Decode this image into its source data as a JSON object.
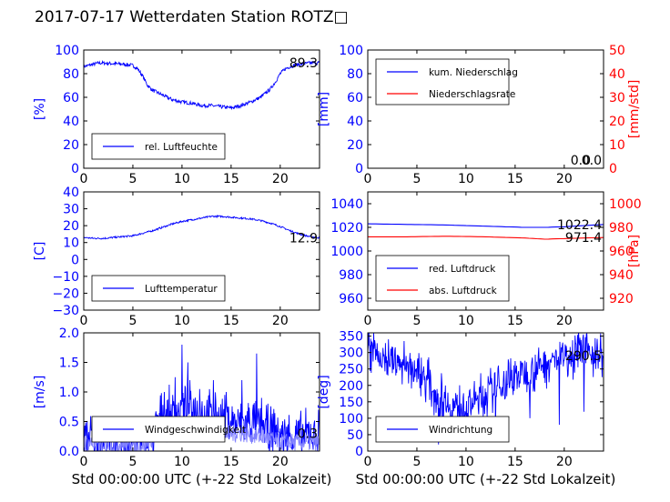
{
  "title": "2017-07-17 Wetterdaten Station ROTZ□",
  "xlabel": "Std 00:00:00 UTC (+-22 Std Lokalzeit)",
  "colors": {
    "blue": "#0000ff",
    "red": "#ff0000",
    "light_blue": "#8080ff"
  },
  "chart_data": [
    {
      "type": "line",
      "xlim": [
        0,
        24
      ],
      "xticks": [
        "0",
        "5",
        "10",
        "15",
        "20"
      ],
      "ylabel": "[%]",
      "ylim": [
        0,
        100
      ],
      "yticks": [
        "0",
        "20",
        "40",
        "60",
        "80",
        "100"
      ],
      "annotation": "89.3",
      "legend": [
        "rel. Luftfeuchte"
      ],
      "series": [
        {
          "name": "rel. Luftfeuchte",
          "color": "blue",
          "noise": 1.5,
          "x": [
            0,
            0.5,
            1,
            1.5,
            2,
            3,
            4,
            5,
            5.5,
            6,
            6.5,
            7,
            7.5,
            8,
            9,
            10,
            11,
            12,
            13,
            14,
            15,
            16,
            17,
            18,
            19,
            19.5,
            20,
            20.5,
            21,
            22,
            23,
            24
          ],
          "y": [
            86,
            87,
            88,
            89,
            89,
            88.5,
            88,
            87,
            84,
            78,
            70,
            66,
            64,
            62,
            58,
            56,
            55,
            53,
            53,
            52,
            51,
            53,
            56,
            60,
            67,
            73,
            80,
            84,
            86,
            88,
            89,
            89.3
          ]
        }
      ]
    },
    {
      "type": "line",
      "xlim": [
        0,
        24
      ],
      "xticks": [
        "0",
        "5",
        "10",
        "15",
        "20"
      ],
      "ylabel": "[mm]",
      "ylim": [
        0,
        100
      ],
      "yticks": [
        "0",
        "20",
        "40",
        "60",
        "80",
        "100"
      ],
      "ylabel2": "[mm/std]",
      "ylim2": [
        0,
        50
      ],
      "yticks2": [
        "0",
        "10",
        "20",
        "30",
        "40",
        "50"
      ],
      "annotation": "0.0",
      "annotation2": "0.0",
      "legend": [
        "kum. Niederschlag",
        "Niederschlagsrate"
      ],
      "series": [
        {
          "name": "kum. Niederschlag",
          "color": "blue",
          "axis": 1,
          "x": [
            0,
            24
          ],
          "y": [
            0,
            0
          ]
        },
        {
          "name": "Niederschlagsrate",
          "color": "red",
          "axis": 2,
          "x": [
            0,
            24
          ],
          "y": [
            0,
            0
          ]
        }
      ]
    },
    {
      "type": "line",
      "xlim": [
        0,
        24
      ],
      "xticks": [
        "0",
        "5",
        "10",
        "15",
        "20"
      ],
      "ylabel": "[C]",
      "ylim": [
        -30,
        40
      ],
      "yticks": [
        "−30",
        "−20",
        "−10",
        "0",
        "10",
        "20",
        "30",
        "40"
      ],
      "annotation": "12.9",
      "legend": [
        "Lufttemperatur"
      ],
      "series": [
        {
          "name": "Lufttemperatur",
          "color": "blue",
          "noise": 0.5,
          "x": [
            0,
            1,
            2,
            3,
            4,
            5,
            6,
            7,
            8,
            9,
            10,
            11,
            12,
            13,
            14,
            15,
            16,
            17,
            18,
            19,
            20,
            21,
            22,
            23,
            24
          ],
          "y": [
            13,
            12.5,
            12.5,
            13,
            13.5,
            14,
            15.5,
            17,
            19,
            21,
            22.5,
            23.5,
            24.5,
            25.5,
            25.5,
            25,
            24.5,
            24,
            23,
            21.5,
            19.5,
            17,
            15,
            13.5,
            12.9
          ]
        }
      ]
    },
    {
      "type": "line",
      "xlim": [
        0,
        24
      ],
      "xticks": [
        "0",
        "5",
        "10",
        "15",
        "20"
      ],
      "ylabel": "",
      "ylim": [
        950,
        1050
      ],
      "yticks": [
        "960",
        "980",
        "1000",
        "1020",
        "1040"
      ],
      "ylabel2": "[hPa]",
      "ylim2": [
        910,
        1010
      ],
      "yticks2": [
        "920",
        "940",
        "960",
        "980",
        "1000"
      ],
      "annotation": "1022.4",
      "annotation2": "971.4",
      "legend": [
        "red. Luftdruck",
        "abs. Luftdruck"
      ],
      "series": [
        {
          "name": "red. Luftdruck",
          "color": "blue",
          "axis": 1,
          "x": [
            0,
            4,
            8,
            12,
            16,
            18,
            20,
            22,
            24
          ],
          "y": [
            1023,
            1022.5,
            1022,
            1021,
            1020,
            1020,
            1020.5,
            1021.5,
            1022.4
          ]
        },
        {
          "name": "abs. Luftdruck",
          "color": "red",
          "axis": 2,
          "x": [
            0,
            4,
            8,
            12,
            16,
            18,
            20,
            22,
            24
          ],
          "y": [
            972,
            972,
            972.5,
            972,
            971,
            970,
            970.5,
            971,
            971.4
          ]
        }
      ]
    },
    {
      "type": "line",
      "xlim": [
        0,
        24
      ],
      "xticks": [
        "0",
        "5",
        "10",
        "15",
        "20"
      ],
      "ylabel": "[m/s]",
      "ylim": [
        0,
        2.0
      ],
      "yticks": [
        "0.0",
        "0.5",
        "1.0",
        "1.5",
        "2.0"
      ],
      "annotation": "0.3",
      "legend": [
        "Windgeschwindigkeit"
      ],
      "series": [
        {
          "name": "Windgeschwindigkeit",
          "color": "blue",
          "noise": 0.35,
          "spiky": true,
          "x": [
            0,
            1,
            2,
            3,
            4,
            5,
            6,
            7,
            7.5,
            8,
            9,
            10,
            11,
            12,
            13,
            14,
            15,
            16,
            17,
            18,
            19,
            20,
            21,
            22,
            23,
            24
          ],
          "y": [
            0.3,
            0.2,
            0.15,
            0.15,
            0.15,
            0.15,
            0.2,
            0.25,
            0.5,
            0.6,
            0.65,
            0.7,
            0.75,
            0.65,
            0.6,
            0.55,
            0.5,
            0.45,
            0.5,
            0.45,
            0.35,
            0.3,
            0.25,
            0.25,
            0.3,
            0.3
          ],
          "peaks": [
            [
              8.2,
              1.0
            ],
            [
              9.3,
              1.25
            ],
            [
              10,
              1.8
            ],
            [
              10.6,
              1.5
            ],
            [
              11.8,
              1.05
            ],
            [
              13.2,
              1.2
            ],
            [
              14.5,
              1.0
            ],
            [
              16.1,
              1.2
            ],
            [
              17.6,
              1.65
            ],
            [
              18.1,
              0.9
            ]
          ]
        },
        {
          "name": "",
          "color": "light_blue",
          "noise": 0.15,
          "x": [
            0,
            2,
            4,
            6,
            8,
            10,
            12,
            14,
            16,
            18,
            20,
            22,
            24
          ],
          "y": [
            0.15,
            0.1,
            0.1,
            0.1,
            0.35,
            0.4,
            0.35,
            0.3,
            0.3,
            0.25,
            0.15,
            0.15,
            0.15
          ]
        }
      ]
    },
    {
      "type": "line",
      "xlim": [
        0,
        24
      ],
      "xticks": [
        "0",
        "5",
        "10",
        "15",
        "20"
      ],
      "ylabel": "[deg]",
      "ylim": [
        0,
        360
      ],
      "yticks": [
        "0",
        "50",
        "100",
        "150",
        "200",
        "250",
        "300",
        "350"
      ],
      "annotation": "290.5",
      "legend": [
        "Windrichtung"
      ],
      "series": [
        {
          "name": "Windrichtung",
          "color": "blue",
          "noise": 60,
          "spiky": true,
          "x": [
            0,
            1,
            2,
            3,
            4,
            5,
            6,
            7,
            8,
            9,
            10,
            11,
            12,
            13,
            14,
            15,
            16,
            17,
            18,
            19,
            20,
            21,
            22,
            23,
            24
          ],
          "y": [
            315,
            300,
            280,
            270,
            260,
            245,
            220,
            170,
            150,
            135,
            140,
            150,
            170,
            190,
            210,
            230,
            240,
            250,
            265,
            280,
            290,
            300,
            300,
            300,
            290.5
          ],
          "peaks": [
            [
              7.2,
              20
            ],
            [
              8.6,
              40
            ],
            [
              10.2,
              50
            ],
            [
              13,
              60
            ],
            [
              16.5,
              100
            ],
            [
              19.5,
              80
            ],
            [
              22,
              120
            ]
          ]
        }
      ]
    }
  ]
}
